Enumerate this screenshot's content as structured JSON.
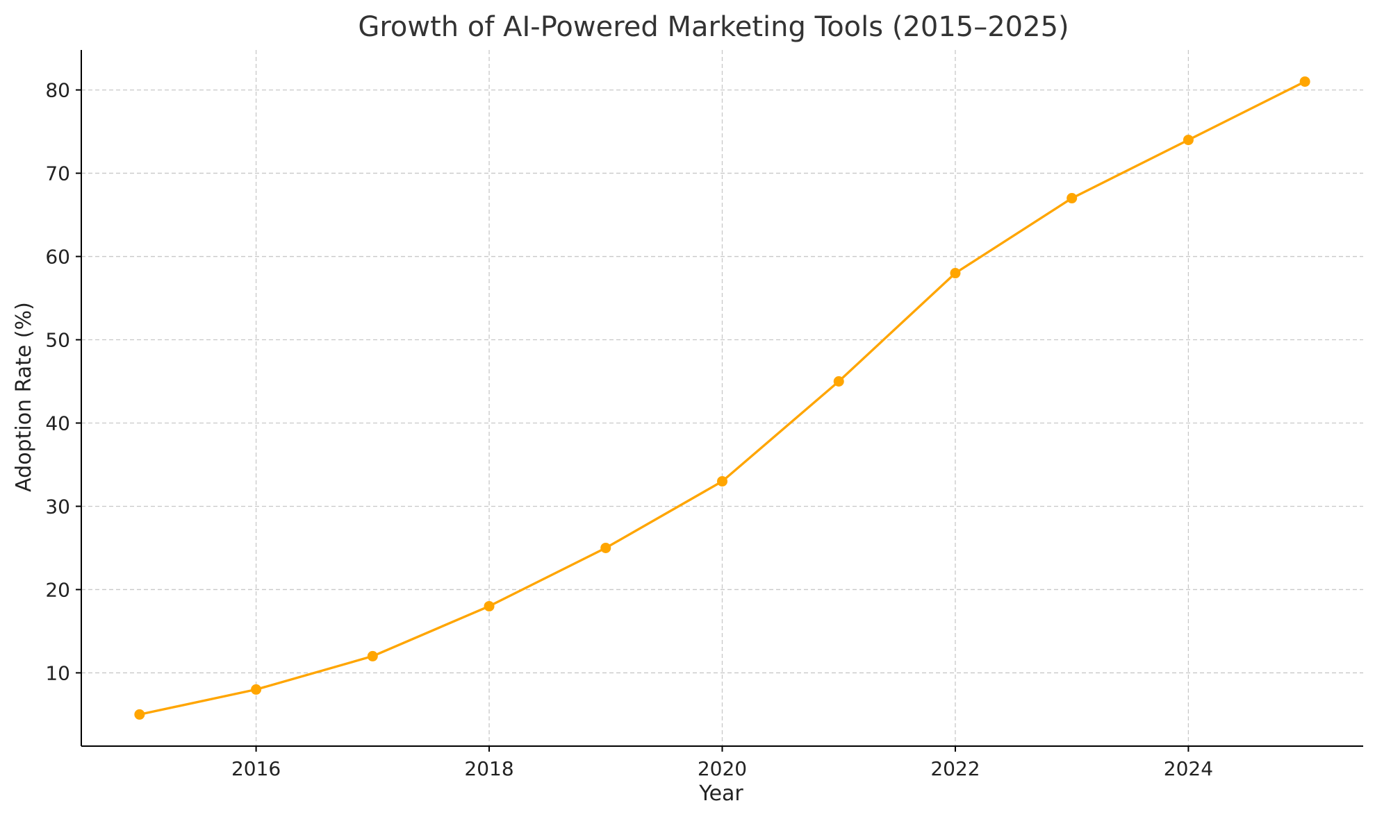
{
  "chart_data": {
    "type": "line",
    "title": "Growth of AI-Powered Marketing Tools (2015–2025)",
    "xlabel": "Year",
    "ylabel": "Adoption Rate (%)",
    "x": [
      2015,
      2016,
      2017,
      2018,
      2019,
      2020,
      2021,
      2022,
      2023,
      2024,
      2025
    ],
    "series": [
      {
        "values": [
          5,
          8,
          12,
          18,
          25,
          33,
          45,
          58,
          67,
          74,
          81
        ],
        "color": "#FFA500"
      }
    ],
    "xlim": [
      2014.5,
      2025.5
    ],
    "ylim": [
      1.2,
      84.8
    ],
    "xticks": [
      2016,
      2018,
      2020,
      2022,
      2024
    ],
    "yticks": [
      10,
      20,
      30,
      40,
      50,
      60,
      70,
      80
    ],
    "grid": true,
    "marker": "circle"
  }
}
